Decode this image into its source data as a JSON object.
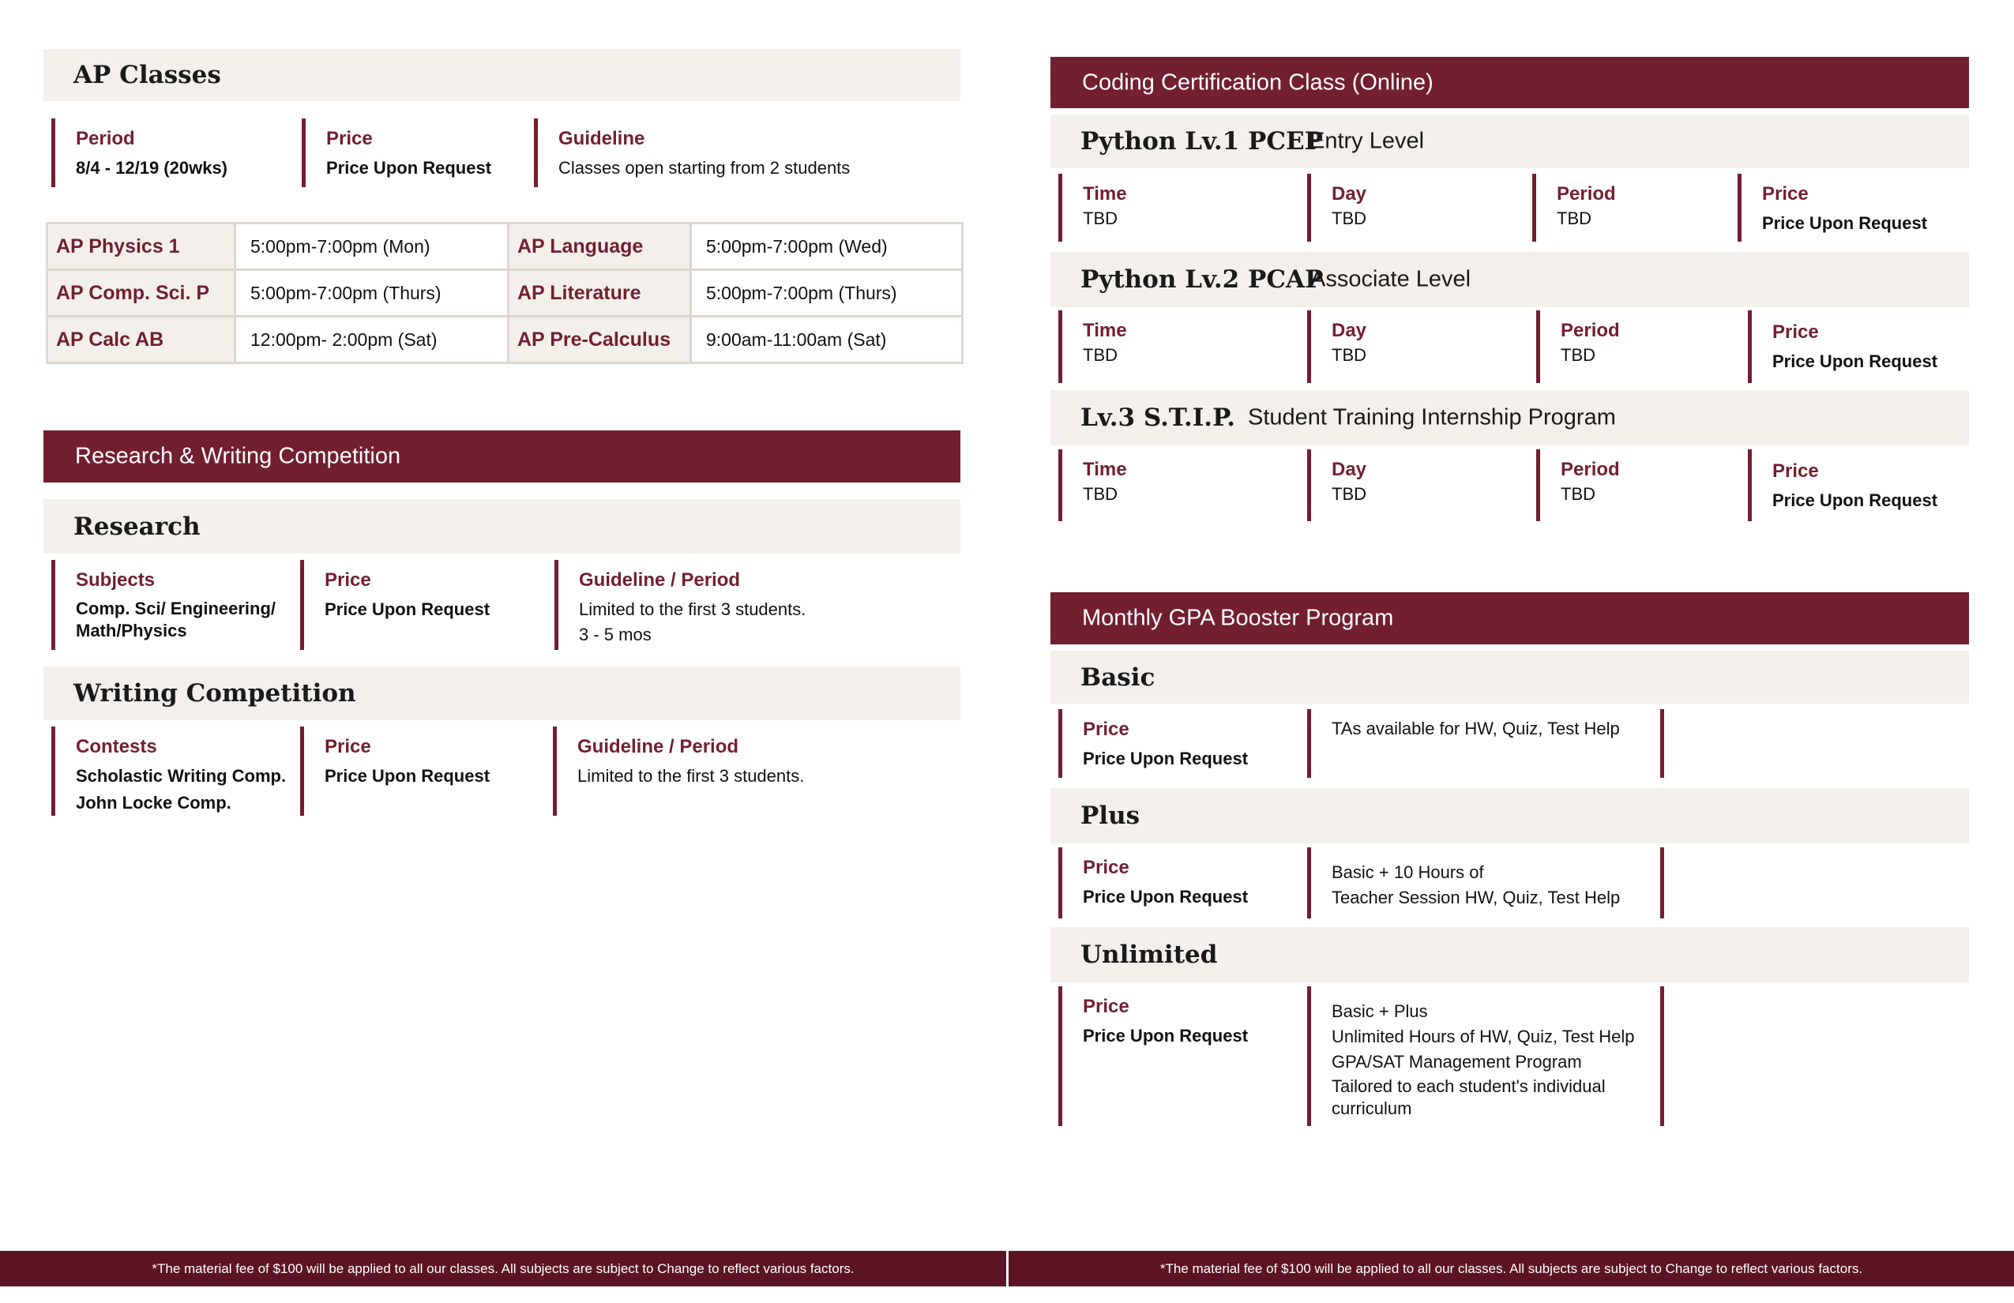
{
  "ap": {
    "title": "AP Classes",
    "info": [
      {
        "label": "Period",
        "value": "8/4 - 12/19 (20wks)"
      },
      {
        "label": "Price",
        "value": "Price Upon Request"
      },
      {
        "label": "Guideline",
        "value": "Classes open starting from 2 students"
      }
    ],
    "table": [
      [
        "AP Physics 1",
        "5:00pm-7:00pm (Mon)",
        "AP Language",
        "5:00pm-7:00pm (Wed)"
      ],
      [
        "AP Comp. Sci.  P",
        "5:00pm-7:00pm (Thurs)",
        "AP Literature",
        "5:00pm-7:00pm (Thurs)"
      ],
      [
        "AP Calc AB",
        "12:00pm- 2:00pm (Sat)",
        "AP Pre-Calculus",
        "9:00am-11:00am (Sat)"
      ]
    ]
  },
  "research_writing": {
    "banner": "Research & Writing Competition",
    "research": {
      "title": "Research",
      "info": [
        {
          "label": "Subjects",
          "lines": [
            "Comp. Sci/ Engineering/",
            "Math/Physics"
          ]
        },
        {
          "label": "Price",
          "value": "Price Upon Request"
        },
        {
          "label": "Guideline / Period",
          "lines": [
            "Limited to the first 3 students.",
            "3 - 5 mos"
          ]
        }
      ]
    },
    "writing": {
      "title": "Writing Competition",
      "info": [
        {
          "label": "Contests",
          "lines": [
            "Scholastic Writing Comp.",
            "John Locke Comp."
          ]
        },
        {
          "label": "Price",
          "value": "Price Upon Request"
        },
        {
          "label": "Guideline / Period",
          "value": "Limited to the first 3 students."
        }
      ]
    }
  },
  "coding": {
    "banner": "Coding Certification Class (Online)",
    "levels": [
      {
        "title": "Python Lv.1 PCEP",
        "subtitle": "Entry Level",
        "time": "TBD",
        "day": "TBD",
        "period": "TBD",
        "price": "Price Upon Request"
      },
      {
        "title": "Python Lv.2 PCAP",
        "subtitle": "Associate Level",
        "time": "TBD",
        "day": "TBD",
        "period": "TBD",
        "price": "Price Upon Request"
      },
      {
        "title": "Lv.3 S.T.I.P.",
        "subtitle": "Student Training Internship Program",
        "time": "TBD",
        "day": "TBD",
        "period": "TBD",
        "price": "Price Upon Request"
      }
    ],
    "labels": {
      "time": "Time",
      "day": "Day",
      "period": "Period",
      "price": "Price"
    }
  },
  "gpa": {
    "banner": "Monthly GPA Booster Program",
    "price_label": "Price",
    "plans": [
      {
        "title": "Basic",
        "price": "Price Upon Request",
        "desc": [
          "TAs available for HW, Quiz, Test Help"
        ]
      },
      {
        "title": "Plus",
        "price": "Price Upon Request",
        "desc": [
          "Basic + 10 Hours of",
          "Teacher Session HW, Quiz, Test Help"
        ]
      },
      {
        "title": "Unlimited",
        "price": "Price Upon Request",
        "desc": [
          "Basic + Plus",
          "Unlimited Hours of HW, Quiz, Test Help",
          "GPA/SAT Management Program",
          "Tailored to each student's individual",
          "curriculum"
        ]
      }
    ]
  },
  "footer": {
    "note": "*The material fee of $100 will be applied to all our classes. All subjects are subject to Change to reflect various factors."
  },
  "colors": {
    "accent": "#721f2f",
    "band": "#f3f0eb",
    "footer": "#5c1424"
  }
}
